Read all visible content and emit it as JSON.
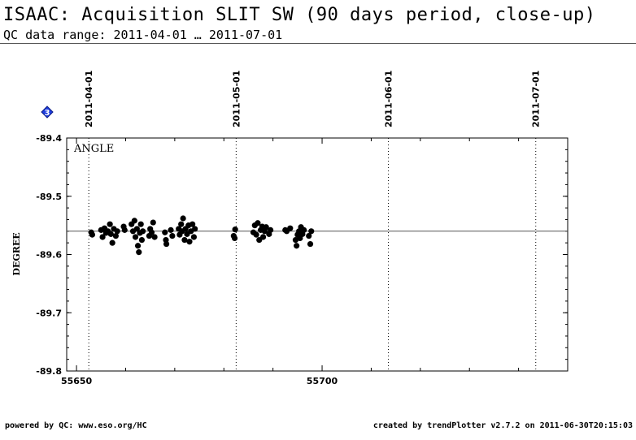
{
  "header": {
    "title": "ISAAC: Acquisition SLIT SW (90 days period, close-up)",
    "subtitle": "QC data range: 2011-04-01 … 2011-07-01"
  },
  "footer": {
    "left": "powered by QC: www.eso.org/HC",
    "right": "created by trendPlotter v2.7.2 on 2011-06-30T20:15:03"
  },
  "badge": {
    "label": "3",
    "color": "#1f3fe0",
    "icon": "diamond-icon"
  },
  "chart_data": {
    "type": "scatter",
    "title": "ISAAC: Acquisition SLIT SW (90 days period, close-up)",
    "panel_label": "ANGLE",
    "ylabel": "DEGREE",
    "xlabel": "",
    "xlim": [
      55648,
      55750
    ],
    "ylim": [
      -89.8,
      -89.4
    ],
    "x_ticks": [
      55650,
      55700
    ],
    "y_ticks": [
      -89.4,
      -89.5,
      -89.6,
      -89.7,
      -89.8
    ],
    "y_tick_labels": [
      "-89.4",
      "-89.5",
      "-89.6",
      "-89.7",
      "-89.8"
    ],
    "reference_line": -89.56,
    "date_markers": [
      {
        "label": "2011-04-01",
        "x": 55652.5
      },
      {
        "label": "2011-05-01",
        "x": 55682.5
      },
      {
        "label": "2011-06-01",
        "x": 55713.5
      },
      {
        "label": "2011-07-01",
        "x": 55743.5
      }
    ],
    "grid": false,
    "series": [
      {
        "color": "#000000",
        "points": [
          [
            55653.0,
            -89.562
          ],
          [
            55653.2,
            -89.566
          ],
          [
            55655.0,
            -89.558
          ],
          [
            55655.3,
            -89.57
          ],
          [
            55655.7,
            -89.555
          ],
          [
            55656.0,
            -89.563
          ],
          [
            55656.4,
            -89.56
          ],
          [
            55656.8,
            -89.548
          ],
          [
            55657.0,
            -89.565
          ],
          [
            55657.3,
            -89.58
          ],
          [
            55657.6,
            -89.556
          ],
          [
            55658.0,
            -89.568
          ],
          [
            55658.3,
            -89.56
          ],
          [
            55659.6,
            -89.552
          ],
          [
            55659.8,
            -89.558
          ],
          [
            55661.2,
            -89.548
          ],
          [
            55661.5,
            -89.56
          ],
          [
            55661.8,
            -89.542
          ],
          [
            55662.0,
            -89.57
          ],
          [
            55662.3,
            -89.556
          ],
          [
            55662.5,
            -89.585
          ],
          [
            55662.7,
            -89.596
          ],
          [
            55662.9,
            -89.563
          ],
          [
            55663.1,
            -89.548
          ],
          [
            55663.3,
            -89.575
          ],
          [
            55663.5,
            -89.56
          ],
          [
            55664.8,
            -89.568
          ],
          [
            55665.0,
            -89.556
          ],
          [
            55665.3,
            -89.562
          ],
          [
            55665.6,
            -89.545
          ],
          [
            55665.9,
            -89.57
          ],
          [
            55668.0,
            -89.562
          ],
          [
            55668.2,
            -89.575
          ],
          [
            55668.3,
            -89.582
          ],
          [
            55669.2,
            -89.558
          ],
          [
            55669.5,
            -89.568
          ],
          [
            55670.8,
            -89.556
          ],
          [
            55671.0,
            -89.566
          ],
          [
            55671.3,
            -89.548
          ],
          [
            55671.5,
            -89.56
          ],
          [
            55671.7,
            -89.538
          ],
          [
            55672.0,
            -89.575
          ],
          [
            55672.2,
            -89.556
          ],
          [
            55672.5,
            -89.565
          ],
          [
            55672.8,
            -89.55
          ],
          [
            55673.0,
            -89.578
          ],
          [
            55673.3,
            -89.56
          ],
          [
            55673.6,
            -89.548
          ],
          [
            55673.9,
            -89.57
          ],
          [
            55674.1,
            -89.556
          ],
          [
            55682.0,
            -89.568
          ],
          [
            55682.2,
            -89.572
          ],
          [
            55682.3,
            -89.557
          ],
          [
            55686.0,
            -89.562
          ],
          [
            55686.3,
            -89.55
          ],
          [
            55686.6,
            -89.566
          ],
          [
            55686.9,
            -89.546
          ],
          [
            55687.2,
            -89.575
          ],
          [
            55687.5,
            -89.558
          ],
          [
            55687.8,
            -89.552
          ],
          [
            55688.0,
            -89.57
          ],
          [
            55688.3,
            -89.56
          ],
          [
            55688.6,
            -89.553
          ],
          [
            55689.2,
            -89.565
          ],
          [
            55689.5,
            -89.558
          ],
          [
            55692.5,
            -89.558
          ],
          [
            55692.8,
            -89.56
          ],
          [
            55693.5,
            -89.555
          ],
          [
            55694.6,
            -89.575
          ],
          [
            55694.8,
            -89.585
          ],
          [
            55695.0,
            -89.566
          ],
          [
            55695.3,
            -89.56
          ],
          [
            55695.5,
            -89.572
          ],
          [
            55695.7,
            -89.553
          ],
          [
            55696.0,
            -89.565
          ],
          [
            55696.3,
            -89.558
          ],
          [
            55697.3,
            -89.568
          ],
          [
            55697.6,
            -89.582
          ],
          [
            55697.8,
            -89.56
          ]
        ]
      }
    ]
  }
}
